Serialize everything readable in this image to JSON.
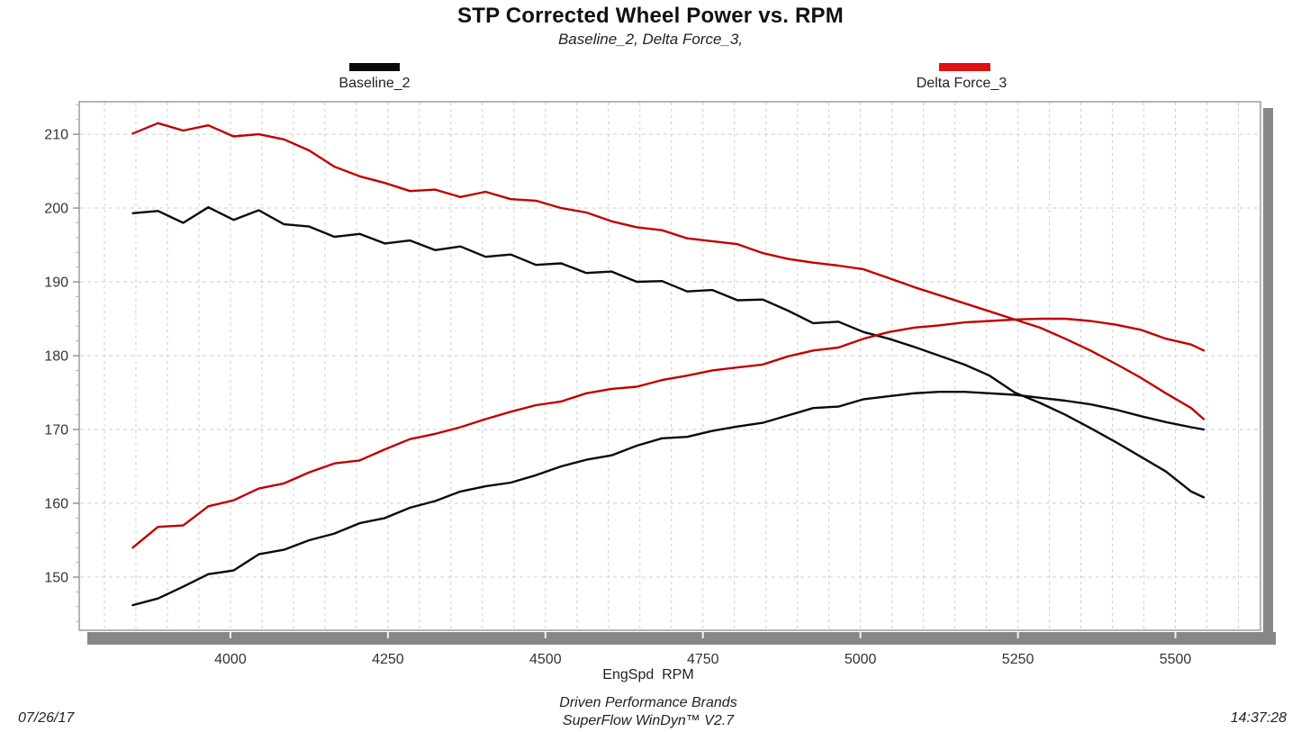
{
  "header": {
    "title": "STP Corrected Wheel Power vs. RPM",
    "subtitle": "Baseline_2, Delta Force_3,"
  },
  "legend": {
    "items": [
      {
        "label": "Baseline_2",
        "color": "#0a0a0a"
      },
      {
        "label": "Delta Force_3",
        "color": "#dd1111"
      }
    ]
  },
  "footer": {
    "date": "07/26/17",
    "brand": "Driven Performance Brands",
    "software": "SuperFlow WinDyn™ V2.7",
    "time": "14:37:28"
  },
  "chart_data": {
    "type": "line",
    "title": "STP Corrected Wheel Power vs. RPM",
    "subtitle": "Baseline_2, Delta Force_3,",
    "xlabel": "EngSpd  RPM",
    "ylabel": "",
    "xlim": [
      3760,
      5635
    ],
    "ylim": [
      142.8,
      214.4
    ],
    "x_ticks": [
      4000,
      4250,
      4500,
      4750,
      5000,
      5250,
      5500
    ],
    "y_ticks": [
      150,
      160,
      170,
      180,
      190,
      200,
      210
    ],
    "x_minor_grid_step": 50,
    "y_minor_tick_step": 2,
    "grid": true,
    "legend_position": "top",
    "style": {
      "grid_color": "#cdcdcd",
      "frame_color": "#9c9c9c",
      "axis_bar_color": "#878787",
      "axis_bar_tick_color": "#f2f2f2",
      "tick_text_color": "#333333"
    },
    "x_rpm": [
      3845,
      3885,
      3925,
      3965,
      4005,
      4045,
      4085,
      4125,
      4165,
      4205,
      4245,
      4285,
      4325,
      4365,
      4405,
      4445,
      4485,
      4525,
      4565,
      4605,
      4645,
      4685,
      4725,
      4765,
      4805,
      4845,
      4885,
      4925,
      4965,
      5005,
      5045,
      5085,
      5125,
      5165,
      5205,
      5245,
      5285,
      5325,
      5365,
      5405,
      5445,
      5485,
      5525,
      5545
    ],
    "series": [
      {
        "name": "Baseline_2 torque curve (black, descending)",
        "color": "#0a0a0a",
        "values": [
          199.3,
          199.6,
          198.0,
          200.1,
          198.4,
          199.7,
          197.8,
          197.5,
          196.1,
          196.5,
          195.2,
          195.6,
          194.3,
          194.8,
          193.4,
          193.7,
          192.3,
          192.5,
          191.2,
          191.4,
          190.0,
          190.1,
          188.7,
          188.9,
          187.5,
          187.6,
          186.1,
          184.4,
          184.6,
          183.2,
          182.3,
          181.2,
          180.0,
          178.8,
          177.3,
          175.0,
          173.6,
          172.0,
          170.2,
          168.3,
          166.3,
          164.3,
          161.6,
          160.8
        ]
      },
      {
        "name": "Baseline_2 power curve (black, ascending, peak ~175)",
        "color": "#0a0a0a",
        "values": [
          146.2,
          147.1,
          148.7,
          150.4,
          150.9,
          153.1,
          153.7,
          155.0,
          155.9,
          157.3,
          158.0,
          159.4,
          160.3,
          161.6,
          162.3,
          162.8,
          163.8,
          165.0,
          165.9,
          166.5,
          167.8,
          168.8,
          169.0,
          169.8,
          170.4,
          170.9,
          171.9,
          172.9,
          173.1,
          174.1,
          174.5,
          174.9,
          175.1,
          175.1,
          174.9,
          174.7,
          174.3,
          173.9,
          173.4,
          172.7,
          171.8,
          171.0,
          170.3,
          170.0
        ]
      },
      {
        "name": "Delta Force_3 torque curve (red, descending)",
        "color": "#c00000",
        "values": [
          210.1,
          211.5,
          210.5,
          211.2,
          209.7,
          210.0,
          209.3,
          207.8,
          205.6,
          204.3,
          203.4,
          202.3,
          202.5,
          201.5,
          202.2,
          201.2,
          201.0,
          200.0,
          199.4,
          198.2,
          197.4,
          197.0,
          195.9,
          195.5,
          195.1,
          193.9,
          193.1,
          192.6,
          192.2,
          191.7,
          190.5,
          189.3,
          188.2,
          187.1,
          186.0,
          184.9,
          183.8,
          182.3,
          180.7,
          178.9,
          177.0,
          174.9,
          172.9,
          171.4
        ]
      },
      {
        "name": "Delta Force_3 power curve (red, ascending, peak ~185)",
        "color": "#c00000",
        "values": [
          154.0,
          156.8,
          157.0,
          159.6,
          160.4,
          162.0,
          162.7,
          164.2,
          165.4,
          165.8,
          167.3,
          168.7,
          169.4,
          170.3,
          171.4,
          172.4,
          173.3,
          173.8,
          174.9,
          175.5,
          175.8,
          176.7,
          177.3,
          178.0,
          178.4,
          178.8,
          179.9,
          180.7,
          181.1,
          182.3,
          183.2,
          183.8,
          184.1,
          184.5,
          184.7,
          184.9,
          185.0,
          185.0,
          184.7,
          184.2,
          183.5,
          182.3,
          181.5,
          180.7
        ]
      }
    ]
  }
}
